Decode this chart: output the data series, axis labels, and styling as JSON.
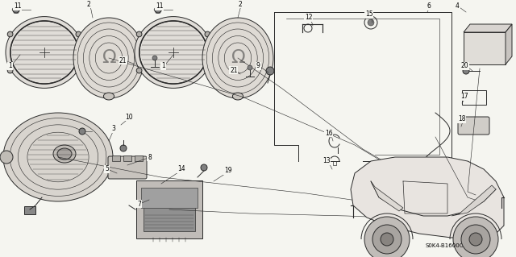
{
  "bg_color": "#f5f5f0",
  "line_color": "#2a2a2a",
  "diagram_id": "S0K4-B1600C",
  "fig_w": 6.4,
  "fig_h": 3.19,
  "dpi": 100
}
